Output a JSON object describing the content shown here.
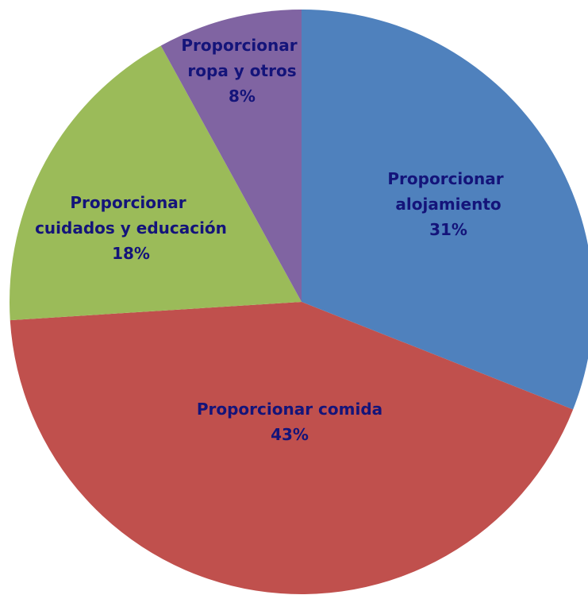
{
  "chart_data": {
    "type": "pie",
    "categories": [
      "Proporcionar alojamiento",
      "Proporcionar comida",
      "Proporcionar cuidados y educación",
      "Proporcionar ropa y otros"
    ],
    "values": [
      31,
      43,
      18,
      8
    ],
    "value_labels": [
      "31%",
      "43%",
      "18%",
      "8%"
    ],
    "colors": [
      "#4f81bd",
      "#c0504d",
      "#9bbb59",
      "#8064a2"
    ]
  }
}
